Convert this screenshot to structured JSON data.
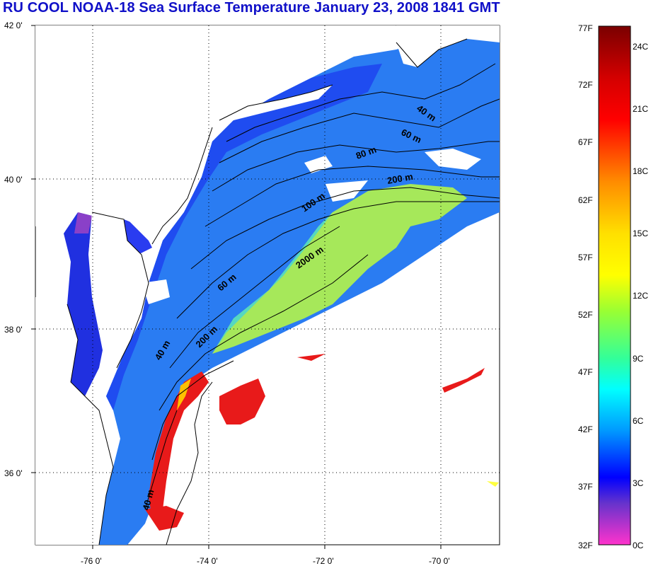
{
  "title": "RU COOL  NOAA-18 Sea Surface Temperature January 23, 2008 1841 GMT",
  "map": {
    "lat_labels": [
      "42 0'",
      "40 0'",
      "38 0'",
      "36 0'"
    ],
    "lon_labels": [
      "-76 0'",
      "-74 0'",
      "-72 0'",
      "-70 0'"
    ],
    "grid": "dotted",
    "contour_labels": [
      "40 m",
      "60 m",
      "80 m",
      "200 m",
      "100 m",
      "2000 m",
      "60 m",
      "200 m",
      "40 m",
      "40 m"
    ]
  },
  "colorbar": {
    "f_labels": [
      "77F",
      "72F",
      "67F",
      "62F",
      "57F",
      "52F",
      "47F",
      "42F",
      "37F",
      "32F"
    ],
    "c_labels": [
      "24C",
      "21C",
      "18C",
      "15C",
      "12C",
      "9C",
      "6C",
      "3C",
      "0C"
    ],
    "colors": [
      "#7a0000",
      "#ff0000",
      "#ff8c00",
      "#ffff00",
      "#66ff33",
      "#00ffff",
      "#0088ff",
      "#0000ff",
      "#7b3fbf",
      "#ff33cc"
    ]
  },
  "colors": {
    "title": "#1010c8",
    "land": "#ffffff",
    "cold_water": "#1a3cff",
    "shelf_water": "#2a8cff",
    "slope_water": "#9ae85a",
    "gulf_stream": "#e81a1a"
  }
}
